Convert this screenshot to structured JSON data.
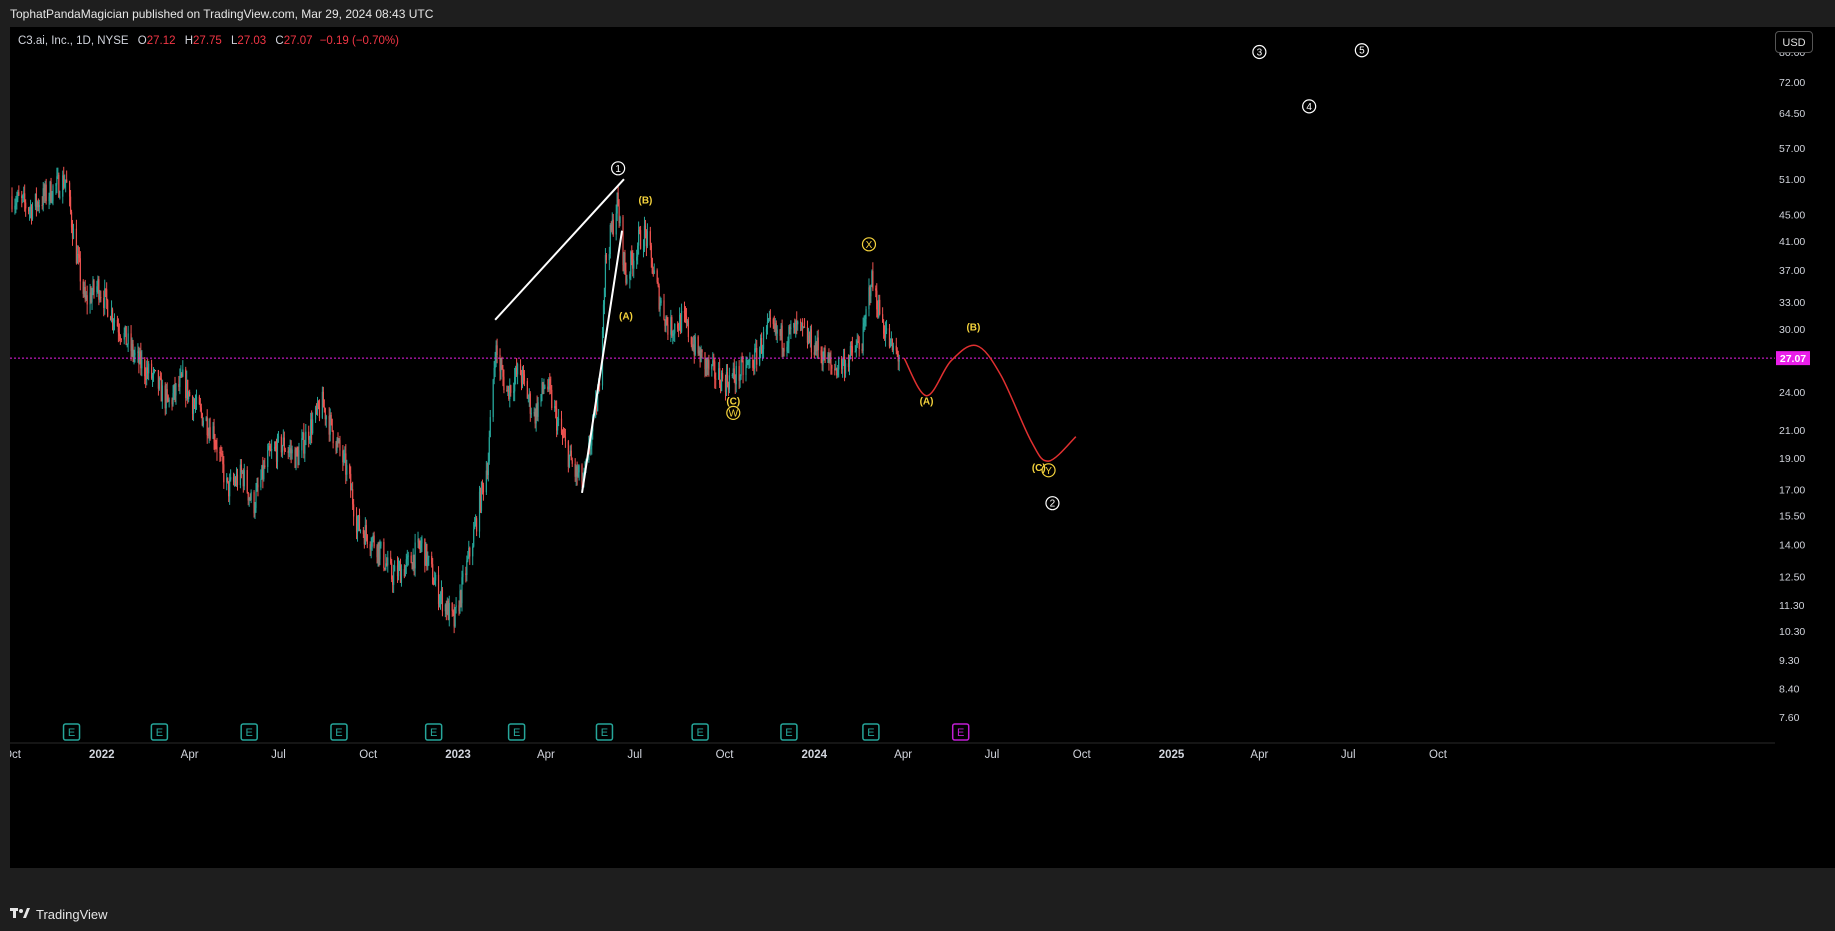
{
  "publisher_line": "TophatPandaMagician published on TradingView.com, Mar 29, 2024 08:43 UTC",
  "legend": {
    "symbol": "C3.ai, Inc., 1D, NYSE",
    "open_label": "O",
    "open": "27.12",
    "high_label": "H",
    "high": "27.75",
    "low_label": "L",
    "low": "27.03",
    "close_label": "C",
    "close": "27.07",
    "change": "−0.19 (−0.70%)"
  },
  "currency_button": "USD",
  "brand_name": "TradingView",
  "colors": {
    "up": "#26a69a",
    "down": "#ef5350",
    "last_price": "#e91ee9",
    "projection": "#e03030",
    "wave_label": "#f5d33c",
    "white": "#ffffff",
    "earnings": "#26a69a",
    "earnings_future": "#c11ed4"
  },
  "chart_data": {
    "type": "candlestick",
    "y_scale": "log",
    "ylim": [
      7.0,
      84.0
    ],
    "y_ticks": [
      "80.00",
      "72.00",
      "64.50",
      "57.00",
      "51.00",
      "45.00",
      "41.00",
      "37.00",
      "33.00",
      "30.00",
      "27.07",
      "24.00",
      "21.00",
      "19.00",
      "17.00",
      "15.50",
      "14.00",
      "12.50",
      "11.30",
      "10.30",
      "9.30",
      "8.40",
      "7.60"
    ],
    "y_tick_values": [
      80,
      72,
      64.5,
      57,
      51,
      45,
      41,
      37,
      33,
      30,
      27.07,
      24,
      21,
      19,
      17,
      15.5,
      14,
      12.5,
      11.3,
      10.3,
      9.3,
      8.4,
      7.6
    ],
    "x_ticks": [
      {
        "label": "Oct",
        "date": "2021-10-01",
        "bold": false
      },
      {
        "label": "2022",
        "date": "2022-01-01",
        "bold": true
      },
      {
        "label": "Apr",
        "date": "2022-04-01",
        "bold": false
      },
      {
        "label": "Jul",
        "date": "2022-07-01",
        "bold": false
      },
      {
        "label": "Oct",
        "date": "2022-10-01",
        "bold": false
      },
      {
        "label": "2023",
        "date": "2023-01-01",
        "bold": true
      },
      {
        "label": "Apr",
        "date": "2023-04-01",
        "bold": false
      },
      {
        "label": "Jul",
        "date": "2023-07-01",
        "bold": false
      },
      {
        "label": "Oct",
        "date": "2023-10-01",
        "bold": false
      },
      {
        "label": "2024",
        "date": "2024-01-01",
        "bold": true
      },
      {
        "label": "Apr",
        "date": "2024-04-01",
        "bold": false
      },
      {
        "label": "Jul",
        "date": "2024-07-01",
        "bold": false
      },
      {
        "label": "Oct",
        "date": "2024-10-01",
        "bold": false
      },
      {
        "label": "2025",
        "date": "2025-01-01",
        "bold": true
      },
      {
        "label": "Apr",
        "date": "2025-04-01",
        "bold": false
      },
      {
        "label": "Jul",
        "date": "2025-07-01",
        "bold": false
      },
      {
        "label": "Oct",
        "date": "2025-10-01",
        "bold": false
      }
    ],
    "last_price": 27.07,
    "price_path": [
      [
        "2021-10-01",
        48
      ],
      [
        "2021-10-20",
        46
      ],
      [
        "2021-11-10",
        49
      ],
      [
        "2021-11-25",
        51
      ],
      [
        "2021-12-05",
        40
      ],
      [
        "2021-12-15",
        33
      ],
      [
        "2021-12-28",
        35
      ],
      [
        "2022-01-15",
        31
      ],
      [
        "2022-02-05",
        27
      ],
      [
        "2022-02-25",
        25
      ],
      [
        "2022-03-10",
        23
      ],
      [
        "2022-03-25",
        25
      ],
      [
        "2022-04-05",
        23
      ],
      [
        "2022-04-25",
        21
      ],
      [
        "2022-05-10",
        17
      ],
      [
        "2022-05-25",
        18
      ],
      [
        "2022-06-05",
        16
      ],
      [
        "2022-06-20",
        19
      ],
      [
        "2022-07-05",
        20
      ],
      [
        "2022-07-20",
        19
      ],
      [
        "2022-08-01",
        21
      ],
      [
        "2022-08-15",
        23
      ],
      [
        "2022-08-25",
        21
      ],
      [
        "2022-09-10",
        18
      ],
      [
        "2022-09-20",
        15
      ],
      [
        "2022-10-10",
        14
      ],
      [
        "2022-10-25",
        12.5
      ],
      [
        "2022-11-10",
        13
      ],
      [
        "2022-11-25",
        14
      ],
      [
        "2022-12-10",
        12
      ],
      [
        "2022-12-28",
        10.6
      ],
      [
        "2023-01-15",
        14
      ],
      [
        "2023-02-01",
        19
      ],
      [
        "2023-02-08",
        28
      ],
      [
        "2023-02-20",
        24
      ],
      [
        "2023-03-05",
        26
      ],
      [
        "2023-03-20",
        22
      ],
      [
        "2023-04-01",
        25
      ],
      [
        "2023-04-15",
        21
      ],
      [
        "2023-05-01",
        18
      ],
      [
        "2023-05-10",
        17.5
      ],
      [
        "2023-05-25",
        24
      ],
      [
        "2023-06-01",
        38
      ],
      [
        "2023-06-13",
        47
      ],
      [
        "2023-06-22",
        36
      ],
      [
        "2023-07-05",
        41
      ],
      [
        "2023-07-12",
        42
      ],
      [
        "2023-07-25",
        34
      ],
      [
        "2023-08-05",
        30
      ],
      [
        "2023-08-20",
        31
      ],
      [
        "2023-09-01",
        28
      ],
      [
        "2023-09-15",
        26
      ],
      [
        "2023-10-01",
        25
      ],
      [
        "2023-10-15",
        25.5
      ],
      [
        "2023-11-01",
        27
      ],
      [
        "2023-11-15",
        30
      ],
      [
        "2023-12-01",
        29
      ],
      [
        "2023-12-15",
        30
      ],
      [
        "2024-01-05",
        28
      ],
      [
        "2024-01-20",
        26
      ],
      [
        "2024-02-05",
        27
      ],
      [
        "2024-02-20",
        29
      ],
      [
        "2024-02-28",
        36
      ],
      [
        "2024-03-10",
        31
      ],
      [
        "2024-03-20",
        28
      ],
      [
        "2024-03-29",
        27.07
      ]
    ],
    "projection_path": [
      [
        "2024-04-02",
        27.07
      ],
      [
        "2024-04-25",
        23.7
      ],
      [
        "2024-05-20",
        26.8
      ],
      [
        "2024-06-15",
        28.3
      ],
      [
        "2024-07-10",
        25.5
      ],
      [
        "2024-08-10",
        20.2
      ],
      [
        "2024-08-28",
        18.8
      ],
      [
        "2024-09-25",
        20.5
      ]
    ],
    "wedge_lines": [
      [
        [
          "2023-02-08",
          31
        ],
        [
          "2023-06-20",
          51
        ]
      ],
      [
        [
          "2023-05-08",
          16.8
        ],
        [
          "2023-06-18",
          42.5
        ]
      ]
    ],
    "wave_labels": [
      {
        "text": "1",
        "date": "2023-06-14",
        "price": 53,
        "style": "circle-white"
      },
      {
        "text": "(B)",
        "date": "2023-07-12",
        "price": 47.5,
        "style": "yellow"
      },
      {
        "text": "(A)",
        "date": "2023-06-22",
        "price": 31.5,
        "style": "yellow"
      },
      {
        "text": "X",
        "date": "2024-02-26",
        "price": 40.5,
        "style": "circle-yellow"
      },
      {
        "text": "(C)",
        "date": "2023-10-10",
        "price": 23.3,
        "style": "yellow"
      },
      {
        "text": "W",
        "date": "2023-10-10",
        "price": 22.3,
        "style": "circle-yellow"
      },
      {
        "text": "(A)",
        "date": "2024-04-25",
        "price": 23.3,
        "style": "yellow"
      },
      {
        "text": "(B)",
        "date": "2024-06-12",
        "price": 30.3,
        "style": "yellow"
      },
      {
        "text": "(C)",
        "date": "2024-08-18",
        "price": 18.4,
        "style": "yellow"
      },
      {
        "text": "Y",
        "date": "2024-08-28",
        "price": 18.2,
        "style": "circle-yellow"
      },
      {
        "text": "2",
        "date": "2024-09-01",
        "price": 16.2,
        "style": "circle-white"
      },
      {
        "text": "3",
        "date": "2025-04-01",
        "price": 80,
        "style": "circle-white"
      },
      {
        "text": "4",
        "date": "2025-05-22",
        "price": 66,
        "style": "circle-white"
      },
      {
        "text": "5",
        "date": "2025-07-15",
        "price": 80.5,
        "style": "circle-white"
      }
    ],
    "earnings_marker_label": "E",
    "earnings_dates": [
      "2021-12-01",
      "2022-03-01",
      "2022-06-01",
      "2022-09-01",
      "2022-12-07",
      "2023-03-02",
      "2023-05-31",
      "2023-09-06",
      "2023-12-06",
      "2024-02-28"
    ],
    "earnings_future_dates": [
      "2024-05-30"
    ]
  }
}
